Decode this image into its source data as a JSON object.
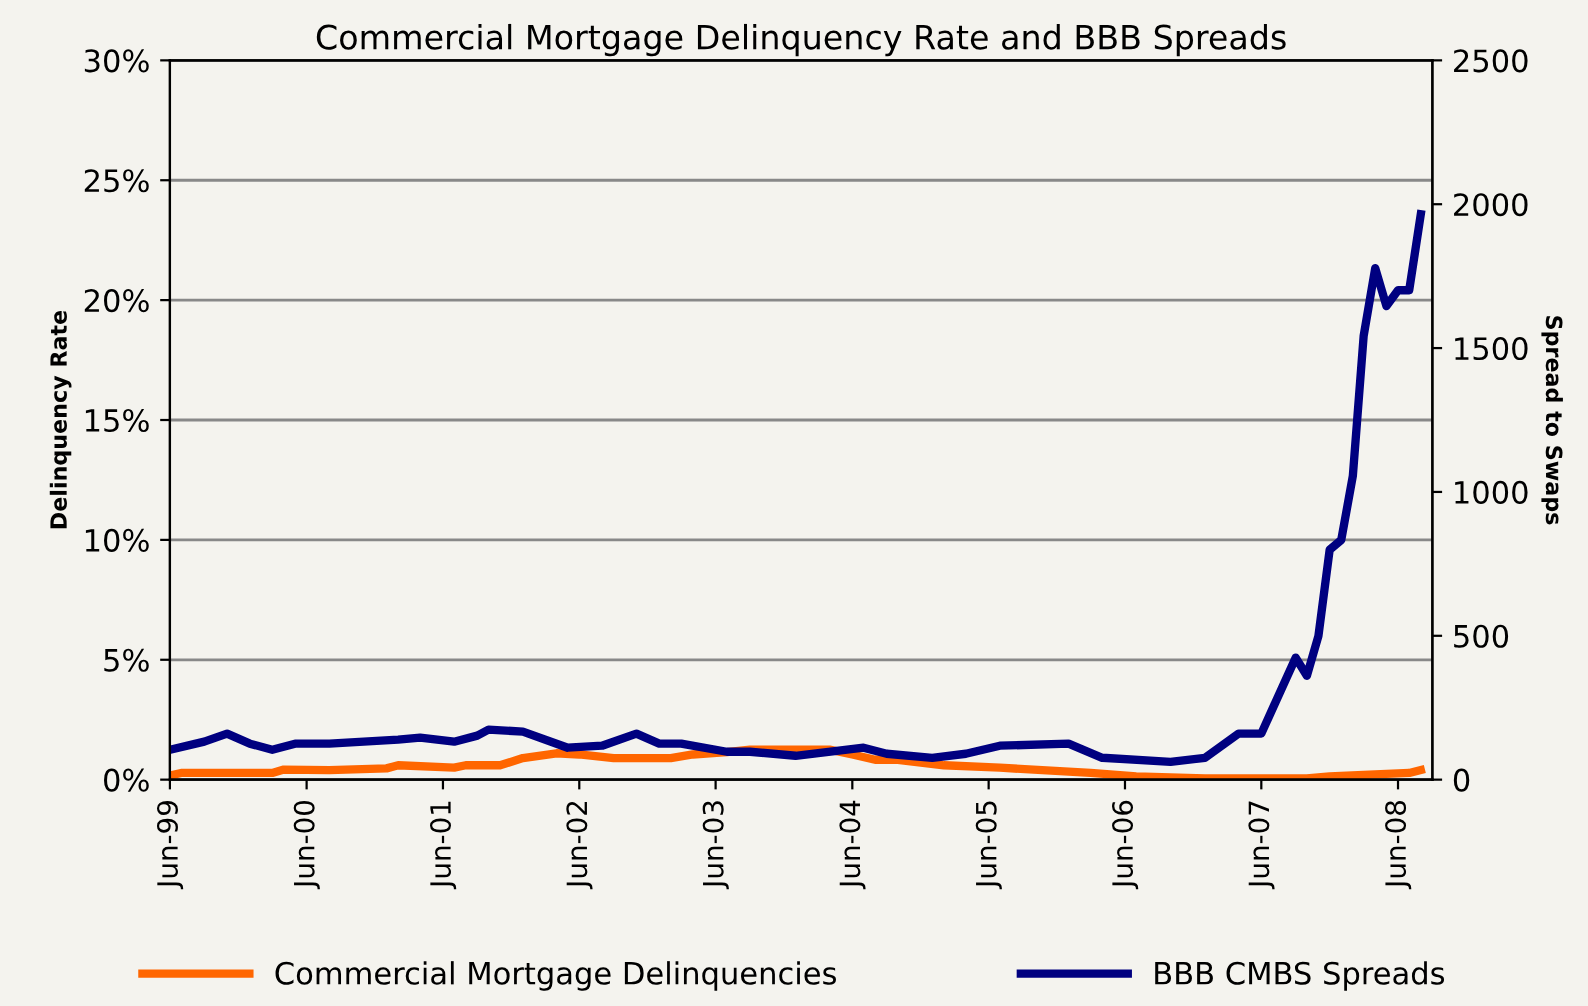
{
  "chart_data": {
    "type": "line",
    "title": "Commercial Mortgage Delinquency Rate and BBB Spreads",
    "ylabel": "Delinquency Rate",
    "y2label": "Spread to Swaps",
    "series": [
      {
        "name": "Commercial Mortgage Delinquencies",
        "color": "#ff6600",
        "x": [
          "1999-06",
          "1999-07",
          "2000-03",
          "2000-04",
          "2000-08",
          "2001-01",
          "2001-02",
          "2001-07",
          "2001-08",
          "2001-11",
          "2002-01",
          "2002-04",
          "2002-06",
          "2002-09",
          "2003-02",
          "2003-04",
          "2003-07",
          "2003-09",
          "2004-04",
          "2004-06",
          "2004-08",
          "2004-10",
          "2005-02",
          "2005-07",
          "2006-03",
          "2006-07",
          "2007-01",
          "2007-10",
          "2007-12",
          "2008-03",
          "2008-07",
          "2008-08"
        ],
        "values": [
          0.17,
          0.28,
          0.28,
          0.42,
          0.4,
          0.47,
          0.6,
          0.5,
          0.6,
          0.6,
          0.9,
          1.1,
          1.05,
          0.9,
          0.9,
          1.05,
          1.15,
          1.25,
          1.25,
          1.05,
          0.83,
          0.83,
          0.6,
          0.5,
          0.28,
          0.14,
          0.05,
          0.05,
          0.14,
          0.2,
          0.28,
          0.4
        ]
      },
      {
        "name": "BBB CMBS Spreads",
        "color": "#000080",
        "axis": "y2",
        "x": [
          "1999-06",
          "1999-09",
          "1999-11",
          "2000-01",
          "2000-03",
          "2000-05",
          "2000-08",
          "2001-02",
          "2001-04",
          "2001-07",
          "2001-09",
          "2001-10",
          "2002-01",
          "2002-05",
          "2002-08",
          "2002-11",
          "2003-01",
          "2003-03",
          "2003-07",
          "2003-09",
          "2004-01",
          "2004-07",
          "2004-09",
          "2005-01",
          "2005-04",
          "2005-07",
          "2006-01",
          "2006-04",
          "2006-10",
          "2007-01",
          "2007-04",
          "2007-06",
          "2007-09",
          "2007-10",
          "2007-11",
          "2007-12",
          "2008-01",
          "2008-02",
          "2008-03",
          "2008-04",
          "2008-05",
          "2008-06",
          "2008-07",
          "2008-08"
        ],
        "values": [
          104,
          132,
          160,
          125,
          104,
          125,
          125,
          139,
          146,
          132,
          153,
          174,
          167,
          111,
          118,
          160,
          125,
          125,
          97,
          97,
          83,
          111,
          90,
          76,
          90,
          118,
          125,
          76,
          62,
          76,
          160,
          160,
          424,
          361,
          500,
          799,
          833,
          1055,
          1542,
          1778,
          1646,
          1701,
          1701,
          1965
        ]
      }
    ],
    "xlim": [
      "1999-06",
      "2008-09"
    ],
    "xticks": [
      {
        "value": "1999-06",
        "label": "Jun-99"
      },
      {
        "value": "2000-06",
        "label": "Jun-00"
      },
      {
        "value": "2001-06",
        "label": "Jun-01"
      },
      {
        "value": "2002-06",
        "label": "Jun-02"
      },
      {
        "value": "2003-06",
        "label": "Jun-03"
      },
      {
        "value": "2004-06",
        "label": "Jun-04"
      },
      {
        "value": "2005-06",
        "label": "Jun-05"
      },
      {
        "value": "2006-06",
        "label": "Jun-06"
      },
      {
        "value": "2007-06",
        "label": "Jun-07"
      },
      {
        "value": "2008-06",
        "label": "Jun-08"
      }
    ],
    "ylim": [
      0,
      30
    ],
    "yticks": [
      {
        "value": 0,
        "label": "0%"
      },
      {
        "value": 5,
        "label": "5%"
      },
      {
        "value": 10,
        "label": "10%"
      },
      {
        "value": 15,
        "label": "15%"
      },
      {
        "value": 20,
        "label": "20%"
      },
      {
        "value": 25,
        "label": "25%"
      },
      {
        "value": 30,
        "label": "30%"
      }
    ],
    "y2lim": [
      0,
      2500
    ],
    "y2ticks": [
      0,
      500,
      1000,
      1500,
      2000,
      2500
    ],
    "grid": "y",
    "legend": "bottom",
    "marker": "none",
    "line_style": "solid"
  }
}
